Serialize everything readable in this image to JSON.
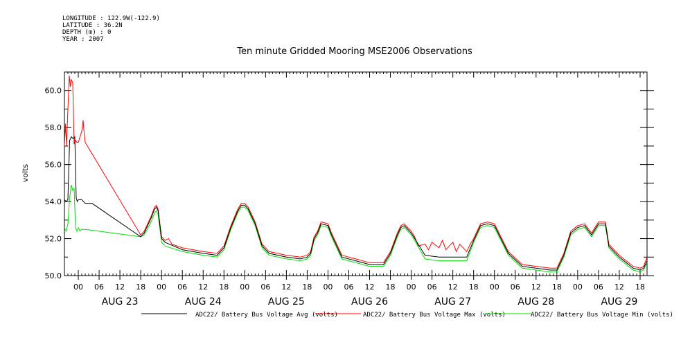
{
  "meta": {
    "longitude": "LONGITUDE : 122.9W(-122.9)",
    "latitude": "LATITUDE : 36.2N",
    "depth": "DEPTH (m) : 0",
    "year": "YEAR : 2007"
  },
  "chart_data": {
    "type": "line",
    "title": "Ten minute Gridded Mooring MSE2006 Observations",
    "xlabel": "",
    "ylabel": "volts",
    "x_unit": "hours since AUG 23 00:00",
    "xlim": [
      -4,
      164
    ],
    "ylim": [
      50,
      61
    ],
    "yticks": [
      "50.0",
      "52.0",
      "54.0",
      "56.0",
      "58.0",
      "60.0"
    ],
    "xtick_hours": [
      "00",
      "06",
      "12",
      "18",
      "00",
      "06",
      "12",
      "18",
      "00",
      "06",
      "12",
      "18",
      "00",
      "06",
      "12",
      "18",
      "00",
      "06",
      "12",
      "18",
      "00",
      "06",
      "12",
      "18",
      "00",
      "06",
      "12",
      "18"
    ],
    "day_labels": [
      "AUG 23",
      "AUG 24",
      "AUG 25",
      "AUG 26",
      "AUG 27",
      "AUG 28",
      "AUG 29"
    ],
    "grid": false,
    "legend_placement": "bottom",
    "colors": {
      "avg": "#000000",
      "max": "#ff0000",
      "min": "#00dd00"
    },
    "series": [
      {
        "name": "ADC22/ Battery Bus Voltage Avg (volts)",
        "key": "avg",
        "x": [
          -4,
          -3.5,
          -3,
          -2.5,
          -2,
          -1.5,
          -1,
          -0.6,
          -0.3,
          0,
          1,
          2,
          4,
          18,
          19,
          21,
          22,
          22.5,
          23,
          24,
          25,
          30,
          36,
          40,
          42,
          44,
          46,
          47,
          48,
          49,
          51,
          53,
          55,
          60,
          64,
          66,
          67,
          68,
          69,
          70,
          72,
          73,
          76,
          80,
          84,
          88,
          90,
          92,
          93,
          94,
          96,
          97,
          100,
          104,
          108,
          112,
          114,
          116,
          118,
          120,
          124,
          128,
          132,
          136,
          138,
          140,
          142,
          144,
          146,
          148,
          150,
          152,
          153,
          154,
          155,
          156,
          158,
          160,
          162,
          163,
          164
        ],
        "y": [
          54.1,
          54.0,
          54.1,
          57.3,
          57.5,
          57.4,
          57.5,
          54.2,
          54.0,
          54.1,
          54.1,
          53.9,
          53.9,
          52.1,
          52.3,
          53.1,
          53.6,
          53.7,
          53.5,
          52.0,
          51.8,
          51.4,
          51.2,
          51.1,
          51.5,
          52.6,
          53.5,
          53.8,
          53.8,
          53.6,
          52.8,
          51.6,
          51.2,
          51.0,
          50.9,
          51.0,
          51.2,
          52.0,
          52.3,
          52.8,
          52.7,
          52.2,
          51.0,
          50.8,
          50.6,
          50.6,
          51.2,
          52.2,
          52.6,
          52.7,
          52.3,
          52.0,
          51.1,
          51.0,
          51.0,
          51.0,
          51.9,
          52.7,
          52.8,
          52.7,
          51.2,
          50.5,
          50.4,
          50.3,
          50.3,
          51.1,
          52.3,
          52.6,
          52.7,
          52.2,
          52.8,
          52.8,
          51.6,
          51.4,
          51.2,
          51.0,
          50.7,
          50.4,
          50.3,
          50.4,
          50.8
        ]
      },
      {
        "name": "ADC22/ Battery Bus Voltage Max (volts)",
        "key": "max",
        "x": [
          -4,
          -3.7,
          -3.4,
          -3,
          -2.6,
          -2.3,
          -2,
          -1.6,
          -1.2,
          -0.8,
          -0.4,
          0,
          0.5,
          1,
          1.4,
          1.6,
          2,
          18,
          19,
          21,
          22,
          22.5,
          23,
          24,
          25,
          26,
          27,
          30,
          36,
          40,
          42,
          44,
          46,
          47,
          48,
          49,
          51,
          53,
          55,
          60,
          64,
          66,
          67,
          68,
          69,
          70,
          72,
          73,
          76,
          80,
          84,
          88,
          90,
          92,
          93,
          94,
          96,
          97,
          98,
          100,
          101,
          102,
          104,
          105,
          106,
          108,
          109,
          110,
          112,
          113,
          114,
          116,
          118,
          120,
          124,
          128,
          132,
          136,
          138,
          140,
          142,
          144,
          146,
          148,
          150,
          152,
          153,
          154,
          155,
          156,
          158,
          160,
          162,
          163,
          164
        ],
        "y": [
          57.0,
          58.2,
          57.0,
          59.0,
          60.8,
          60.2,
          60.6,
          60.4,
          57.1,
          57.3,
          57.2,
          57.2,
          57.5,
          57.8,
          58.4,
          57.9,
          57.2,
          52.2,
          52.4,
          53.2,
          53.7,
          53.8,
          53.6,
          52.1,
          51.9,
          52.0,
          51.7,
          51.5,
          51.3,
          51.2,
          51.6,
          52.7,
          53.6,
          53.9,
          53.9,
          53.7,
          52.9,
          51.7,
          51.3,
          51.1,
          51.0,
          51.1,
          51.3,
          52.1,
          52.4,
          52.9,
          52.8,
          52.3,
          51.1,
          50.9,
          50.7,
          50.7,
          51.3,
          52.3,
          52.7,
          52.8,
          52.4,
          52.1,
          51.6,
          51.7,
          51.4,
          51.8,
          51.5,
          51.9,
          51.4,
          51.8,
          51.3,
          51.7,
          51.3,
          51.7,
          52.0,
          52.8,
          52.9,
          52.8,
          51.3,
          50.6,
          50.5,
          50.4,
          50.4,
          51.2,
          52.4,
          52.7,
          52.8,
          52.3,
          52.9,
          52.9,
          51.7,
          51.5,
          51.3,
          51.1,
          50.8,
          50.5,
          50.4,
          50.5,
          51.0
        ]
      },
      {
        "name": "ADC22/ Battery Bus Voltage Min (volts)",
        "key": "min",
        "x": [
          -4,
          -3.5,
          -3,
          -2.5,
          -2,
          -1.6,
          -1.2,
          -0.8,
          -0.4,
          0,
          0.5,
          1,
          2,
          18,
          19,
          21,
          22,
          22.5,
          23,
          24,
          25,
          30,
          36,
          40,
          42,
          44,
          46,
          47,
          48,
          49,
          51,
          53,
          55,
          60,
          64,
          66,
          67,
          68,
          69,
          70,
          72,
          73,
          76,
          80,
          84,
          88,
          90,
          92,
          93,
          94,
          96,
          97,
          100,
          104,
          108,
          112,
          114,
          116,
          118,
          120,
          124,
          128,
          132,
          136,
          138,
          140,
          142,
          144,
          146,
          148,
          150,
          152,
          153,
          154,
          155,
          156,
          158,
          160,
          162,
          163,
          164
        ],
        "y": [
          52.6,
          52.4,
          52.8,
          54.2,
          54.9,
          54.6,
          54.7,
          52.6,
          52.4,
          52.6,
          52.4,
          52.5,
          52.5,
          52.1,
          52.2,
          52.9,
          53.4,
          53.5,
          53.3,
          51.8,
          51.6,
          51.3,
          51.1,
          51.0,
          51.4,
          52.5,
          53.4,
          53.7,
          53.7,
          53.5,
          52.7,
          51.5,
          51.1,
          50.9,
          50.8,
          50.9,
          51.1,
          51.9,
          52.2,
          52.7,
          52.6,
          52.1,
          50.9,
          50.7,
          50.5,
          50.5,
          51.1,
          52.1,
          52.5,
          52.6,
          52.2,
          51.9,
          50.9,
          50.8,
          50.8,
          50.8,
          51.8,
          52.6,
          52.7,
          52.6,
          51.1,
          50.4,
          50.3,
          50.2,
          50.2,
          51.0,
          52.2,
          52.5,
          52.6,
          52.1,
          52.7,
          52.7,
          51.5,
          51.3,
          51.1,
          50.9,
          50.6,
          50.3,
          50.2,
          50.3,
          50.7
        ]
      }
    ]
  }
}
